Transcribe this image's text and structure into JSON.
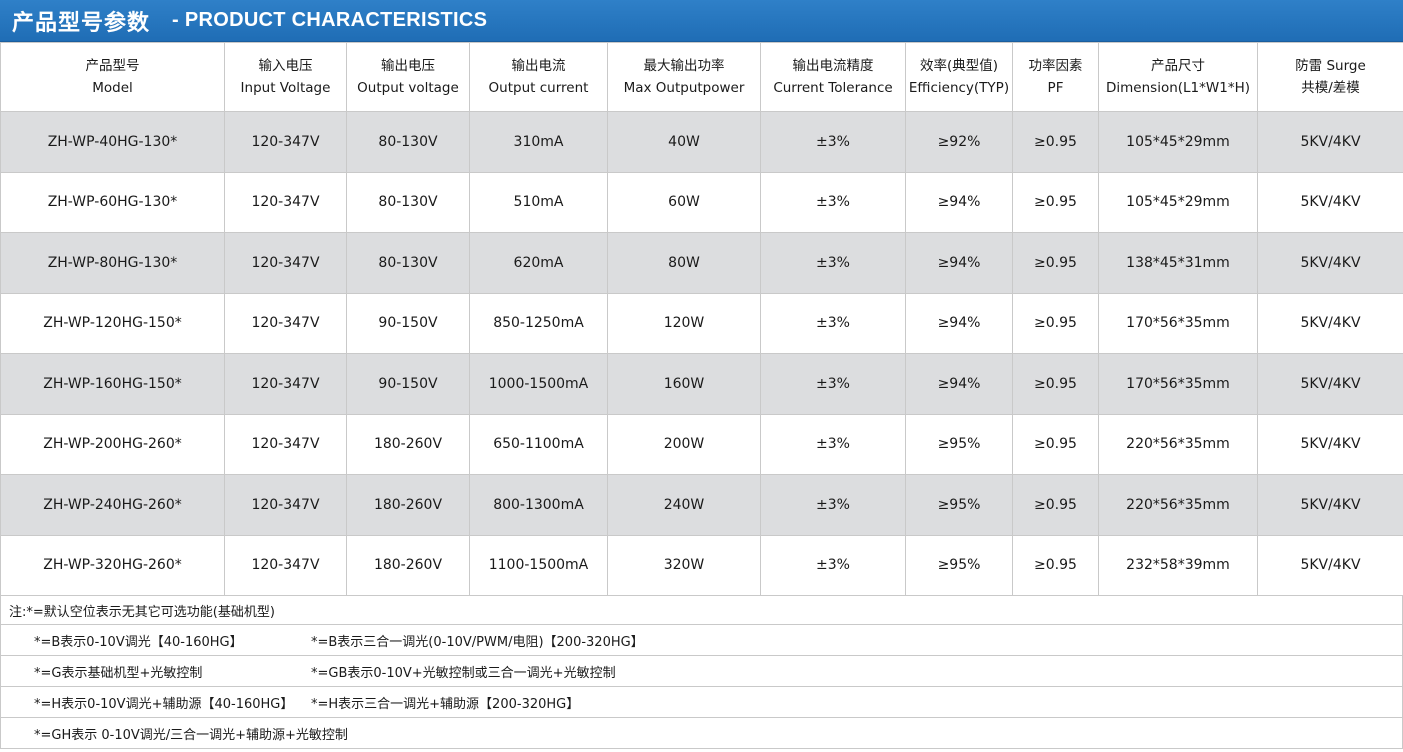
{
  "title": {
    "cn": "产品型号参数",
    "en": "- PRODUCT CHARACTERISTICS"
  },
  "headers": [
    [
      "产品型号",
      "Model"
    ],
    [
      "输入电压",
      "Input Voltage"
    ],
    [
      "输出电压",
      "Output voltage"
    ],
    [
      "输出电流",
      "Output current"
    ],
    [
      "最大输出功率",
      "Max Outputpower"
    ],
    [
      "输出电流精度",
      "Current Tolerance"
    ],
    [
      "效率(典型值)",
      "Efficiency(TYP)"
    ],
    [
      "功率因素",
      "PF"
    ],
    [
      "产品尺寸",
      "Dimension(L1*W1*H)"
    ],
    [
      "防雷 Surge",
      "共模/差模"
    ]
  ],
  "rows": [
    [
      "ZH-WP-40HG-130*",
      "120-347V",
      "80-130V",
      "310mA",
      "40W",
      "±3%",
      "≥92%",
      "≥0.95",
      "105*45*29mm",
      "5KV/4KV"
    ],
    [
      "ZH-WP-60HG-130*",
      "120-347V",
      "80-130V",
      "510mA",
      "60W",
      "±3%",
      "≥94%",
      "≥0.95",
      "105*45*29mm",
      "5KV/4KV"
    ],
    [
      "ZH-WP-80HG-130*",
      "120-347V",
      "80-130V",
      "620mA",
      "80W",
      "±3%",
      "≥94%",
      "≥0.95",
      "138*45*31mm",
      "5KV/4KV"
    ],
    [
      "ZH-WP-120HG-150*",
      "120-347V",
      "90-150V",
      "850-1250mA",
      "120W",
      "±3%",
      "≥94%",
      "≥0.95",
      "170*56*35mm",
      "5KV/4KV"
    ],
    [
      "ZH-WP-160HG-150*",
      "120-347V",
      "90-150V",
      "1000-1500mA",
      "160W",
      "±3%",
      "≥94%",
      "≥0.95",
      "170*56*35mm",
      "5KV/4KV"
    ],
    [
      "ZH-WP-200HG-260*",
      "120-347V",
      "180-260V",
      "650-1100mA",
      "200W",
      "±3%",
      "≥95%",
      "≥0.95",
      "220*56*35mm",
      "5KV/4KV"
    ],
    [
      "ZH-WP-240HG-260*",
      "120-347V",
      "180-260V",
      "800-1300mA",
      "240W",
      "±3%",
      "≥95%",
      "≥0.95",
      "220*56*35mm",
      "5KV/4KV"
    ],
    [
      "ZH-WP-320HG-260*",
      "120-347V",
      "180-260V",
      "1100-1500mA",
      "320W",
      "±3%",
      "≥95%",
      "≥0.95",
      "232*58*39mm",
      "5KV/4KV"
    ]
  ],
  "notes": {
    "intro": "注:*=默认空位表示无其它可选功能(基础机型)",
    "options": [
      [
        "*=B表示0-10V调光【40-160HG】",
        "*=B表示三合一调光(0-10V/PWM/电阻)【200-320HG】"
      ],
      [
        "*=G表示基础机型+光敏控制",
        "*=GB表示0-10V+光敏控制或三合一调光+光敏控制"
      ],
      [
        "*=H表示0-10V调光+辅助源【40-160HG】",
        "*=H表示三合一调光+辅助源【200-320HG】"
      ],
      [
        "*=GH表示 0-10V调光/三合一调光+辅助源+光敏控制",
        ""
      ]
    ]
  },
  "colors": {
    "title_bar": "#2478c0",
    "row_shade": "#dcdddf",
    "grid_line": "#c9c9c9"
  }
}
